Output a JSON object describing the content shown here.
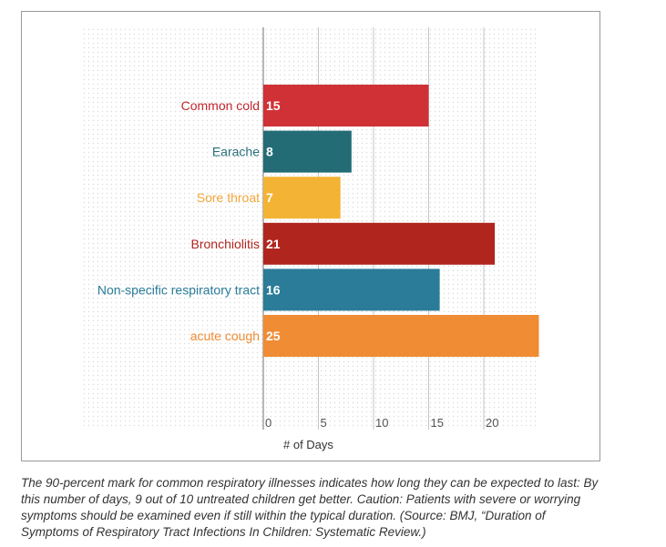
{
  "chart_data": {
    "type": "bar",
    "orientation": "horizontal",
    "categories": [
      "Common cold",
      "Earache",
      "Sore throat",
      "Bronchiolitis",
      "Non-specific respiratory tract",
      "acute cough"
    ],
    "values": [
      15,
      8,
      7,
      21,
      16,
      25
    ],
    "colors": [
      "#cf3136",
      "#236c76",
      "#f3b335",
      "#b0261f",
      "#2a7c99",
      "#f08c34"
    ],
    "label_colors": [
      "#c0272d",
      "#2a6f7c",
      "#f3a73b",
      "#b0261f",
      "#2a7c99",
      "#f08c34"
    ],
    "xlabel": "# of Days",
    "xticks": [
      0,
      5,
      10,
      15,
      20
    ],
    "xlim": [
      0,
      25
    ],
    "grid": true
  },
  "caption": "The 90-percent mark for common respiratory illnesses indicates how long they can be expected to last: By this number of days, 9 out of 10 untreated children get better. Caution: Patients with severe or worrying symptoms should be examined even if still within the typical duration. (Source: BMJ, “Duration of Symptoms of Respiratory Tract Infections In Children: Systematic Review.)"
}
